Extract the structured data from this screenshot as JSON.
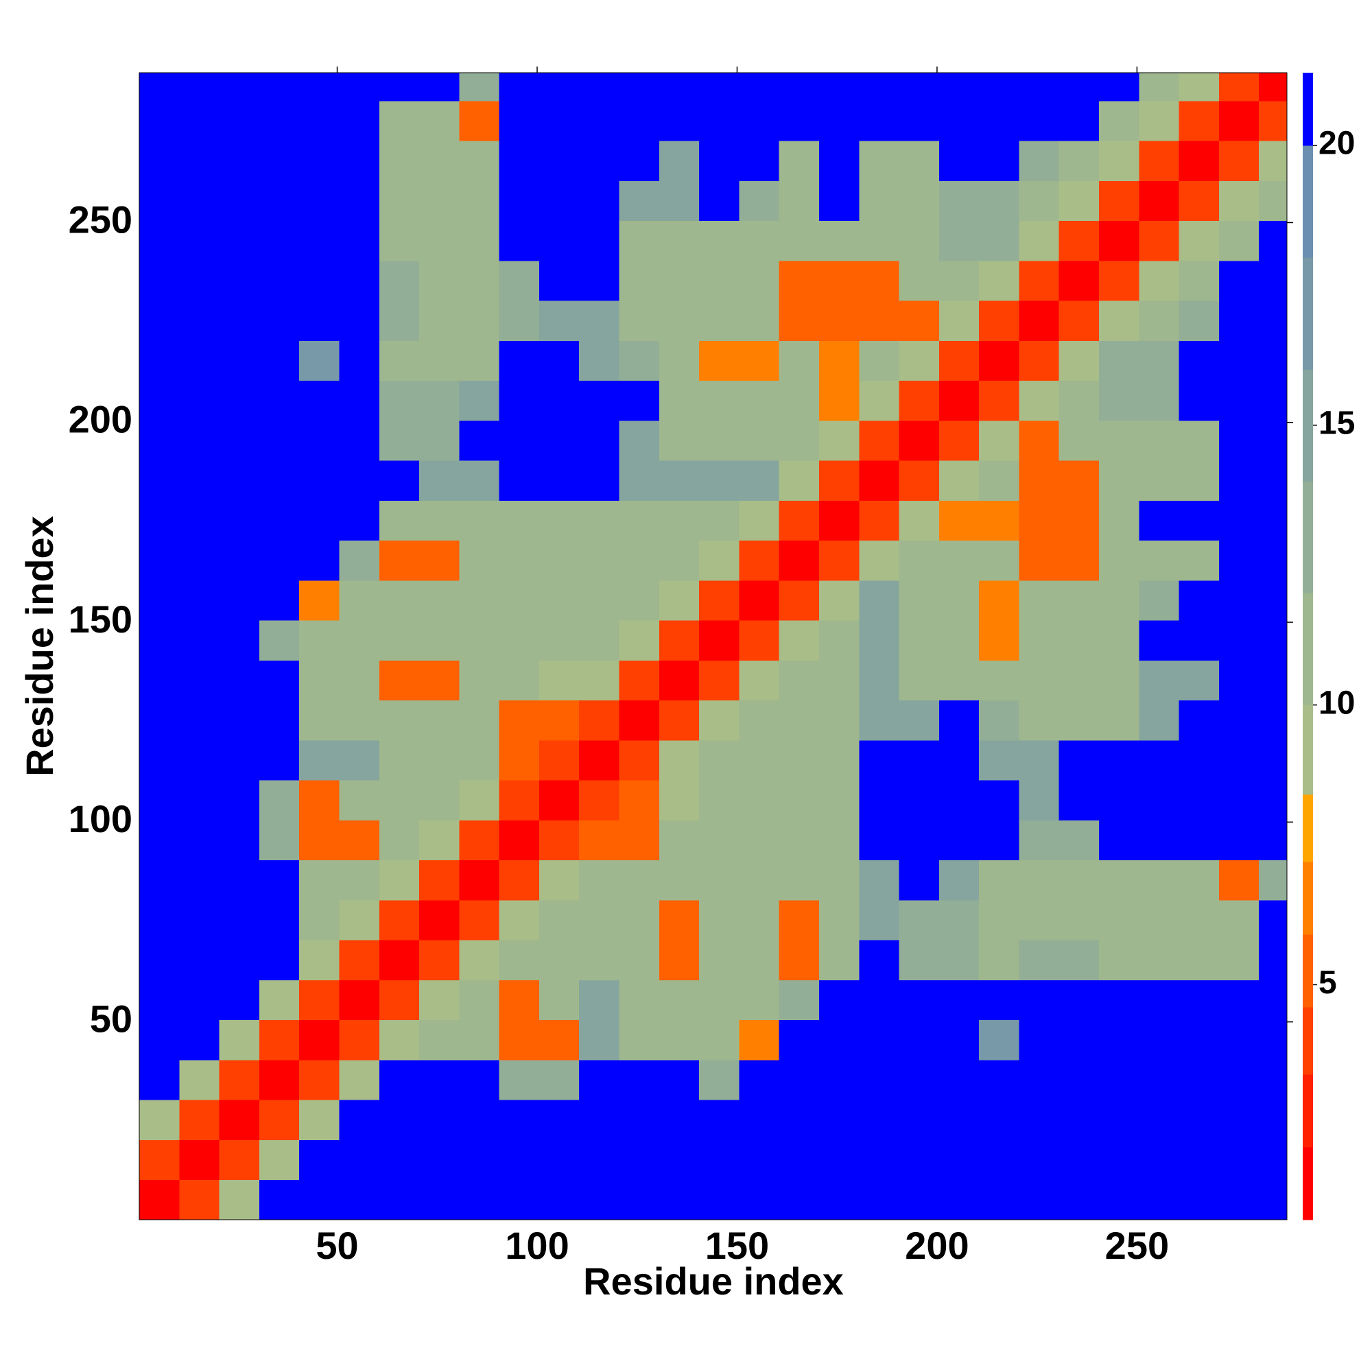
{
  "chart_data": {
    "type": "heatmap",
    "xlabel": "Residue index",
    "ylabel": "Residue index",
    "xlim": [
      0.5,
      287.5
    ],
    "ylim": [
      0.5,
      287.5
    ],
    "xticks": [
      50,
      100,
      150,
      200,
      250
    ],
    "yticks": [
      50,
      100,
      150,
      200,
      250
    ],
    "xbins": [
      0.5,
      10.5,
      20.5,
      30.5,
      40.5,
      50.5,
      60.5,
      70.5,
      80.5,
      90.5,
      100.5,
      110.5,
      120.5,
      130.5,
      140.5,
      150.5,
      160.5,
      170.5,
      180.5,
      190.5,
      200.5,
      210.5,
      220.5,
      230.5,
      240.5,
      250.5,
      260.5,
      270.5,
      280.5,
      287.5
    ],
    "ybins": [
      0.5,
      10.5,
      20.5,
      30.5,
      40.5,
      50.5,
      60.5,
      70.5,
      80.5,
      90.5,
      100.5,
      110.5,
      120.5,
      130.5,
      140.5,
      150.5,
      160.5,
      170.5,
      180.5,
      190.5,
      200.5,
      210.5,
      220.5,
      230.5,
      240.5,
      250.5,
      260.5,
      270.5,
      280.5,
      287.5
    ],
    "values": [
      [
        2,
        4,
        9,
        21,
        21,
        21,
        21,
        21,
        21,
        21,
        21,
        21,
        21,
        21,
        21,
        21,
        21,
        21,
        21,
        21,
        21,
        21,
        21,
        21,
        21,
        21,
        21,
        21,
        21
      ],
      [
        4,
        2,
        4,
        9,
        21,
        21,
        21,
        21,
        21,
        21,
        21,
        21,
        21,
        21,
        21,
        21,
        21,
        21,
        21,
        21,
        21,
        21,
        21,
        21,
        21,
        21,
        21,
        21,
        21
      ],
      [
        9,
        4,
        2,
        4,
        9,
        21,
        21,
        21,
        21,
        21,
        21,
        21,
        21,
        21,
        21,
        21,
        21,
        21,
        21,
        21,
        21,
        21,
        21,
        21,
        21,
        21,
        21,
        21,
        21
      ],
      [
        21,
        9,
        4,
        2,
        4,
        9,
        21,
        21,
        21,
        13,
        13,
        21,
        21,
        21,
        14,
        21,
        21,
        21,
        21,
        21,
        21,
        21,
        21,
        21,
        21,
        21,
        21,
        21,
        21
      ],
      [
        21,
        21,
        9,
        4,
        2,
        4,
        9,
        11,
        11,
        5,
        5,
        15,
        11,
        11,
        11,
        6,
        21,
        21,
        21,
        21,
        21,
        17,
        21,
        21,
        21,
        21,
        21,
        21,
        21
      ],
      [
        21,
        21,
        21,
        9,
        4,
        2,
        4,
        9,
        11,
        5,
        11,
        15,
        11,
        11,
        11,
        11,
        13,
        21,
        21,
        21,
        21,
        21,
        21,
        21,
        21,
        21,
        21,
        21,
        21
      ],
      [
        21,
        21,
        21,
        21,
        9,
        4,
        2,
        4,
        9,
        11,
        11,
        11,
        11,
        5,
        11,
        11,
        5,
        11,
        21,
        14,
        14,
        12,
        13,
        13,
        12,
        12,
        12,
        12,
        21
      ],
      [
        21,
        21,
        21,
        21,
        11,
        9,
        4,
        2,
        4,
        9,
        11,
        11,
        11,
        5,
        11,
        11,
        5,
        11,
        16,
        14,
        14,
        12,
        12,
        12,
        12,
        12,
        12,
        12,
        21
      ],
      [
        21,
        21,
        21,
        21,
        11,
        11,
        9,
        4,
        2,
        4,
        9,
        11,
        11,
        11,
        11,
        11,
        11,
        12,
        16,
        21,
        15,
        12,
        12,
        12,
        12,
        12,
        12,
        5,
        14
      ],
      [
        21,
        21,
        21,
        13,
        5,
        5,
        11,
        9,
        4,
        2,
        4,
        5,
        5,
        11,
        11,
        11,
        11,
        12,
        21,
        21,
        21,
        21,
        13,
        13,
        21,
        21,
        21,
        21,
        21
      ],
      [
        21,
        21,
        21,
        13,
        5,
        11,
        11,
        11,
        9,
        4,
        2,
        4,
        5,
        9,
        11,
        11,
        11,
        11,
        21,
        21,
        21,
        21,
        16,
        21,
        21,
        21,
        21,
        21,
        21
      ],
      [
        21,
        21,
        21,
        21,
        15,
        15,
        11,
        11,
        11,
        5,
        4,
        2,
        4,
        9,
        11,
        11,
        11,
        11,
        21,
        21,
        21,
        16,
        16,
        21,
        21,
        21,
        21,
        21,
        21
      ],
      [
        21,
        21,
        21,
        21,
        11,
        11,
        11,
        11,
        11,
        5,
        5,
        4,
        2,
        4,
        9,
        11,
        11,
        11,
        16,
        16,
        21,
        14,
        12,
        12,
        12,
        16,
        21,
        21,
        21
      ],
      [
        21,
        21,
        21,
        21,
        11,
        11,
        5,
        5,
        11,
        11,
        9,
        9,
        4,
        2,
        4,
        9,
        11,
        11,
        16,
        11,
        11,
        12,
        12,
        12,
        12,
        16,
        16,
        21,
        21
      ],
      [
        21,
        21,
        21,
        14,
        11,
        11,
        11,
        11,
        11,
        11,
        11,
        11,
        9,
        4,
        2,
        4,
        9,
        11,
        16,
        11,
        11,
        6,
        12,
        12,
        12,
        21,
        21,
        21,
        21
      ],
      [
        21,
        21,
        21,
        21,
        6,
        11,
        11,
        11,
        11,
        11,
        11,
        11,
        11,
        9,
        4,
        2,
        4,
        9,
        16,
        11,
        11,
        6,
        12,
        12,
        12,
        14,
        21,
        21,
        21
      ],
      [
        21,
        21,
        21,
        21,
        21,
        13,
        5,
        5,
        11,
        11,
        11,
        11,
        11,
        11,
        9,
        4,
        2,
        4,
        9,
        11,
        11,
        12,
        5,
        5,
        12,
        12,
        12,
        21,
        21
      ],
      [
        21,
        21,
        21,
        21,
        21,
        21,
        11,
        11,
        12,
        12,
        11,
        11,
        11,
        11,
        11,
        9,
        4,
        2,
        4,
        9,
        6,
        6,
        5,
        5,
        12,
        21,
        21,
        21,
        21
      ],
      [
        21,
        21,
        21,
        21,
        21,
        21,
        21,
        16,
        16,
        21,
        21,
        21,
        16,
        16,
        16,
        16,
        9,
        4,
        2,
        4,
        9,
        11,
        5,
        5,
        12,
        12,
        12,
        21,
        21
      ],
      [
        21,
        21,
        21,
        21,
        21,
        21,
        14,
        14,
        21,
        21,
        21,
        21,
        16,
        11,
        11,
        11,
        11,
        9,
        4,
        2,
        4,
        9,
        5,
        11,
        12,
        12,
        12,
        21,
        21
      ],
      [
        21,
        21,
        21,
        21,
        21,
        21,
        14,
        14,
        15,
        21,
        21,
        21,
        21,
        11,
        11,
        11,
        11,
        6,
        9,
        4,
        2,
        4,
        9,
        11,
        14,
        14,
        21,
        21,
        21
      ],
      [
        21,
        21,
        21,
        21,
        17,
        21,
        12,
        12,
        12,
        21,
        21,
        16,
        14,
        12,
        6,
        6,
        12,
        6,
        11,
        9,
        4,
        2,
        4,
        9,
        14,
        13,
        21,
        21,
        21
      ],
      [
        21,
        21,
        21,
        21,
        21,
        21,
        13,
        12,
        12,
        13,
        16,
        16,
        12,
        12,
        12,
        12,
        5,
        5,
        5,
        5,
        9,
        4,
        2,
        4,
        9,
        12,
        14,
        21,
        21
      ],
      [
        21,
        21,
        21,
        21,
        21,
        21,
        13,
        12,
        12,
        13,
        21,
        21,
        12,
        12,
        12,
        12,
        5,
        5,
        5,
        11,
        11,
        9,
        4,
        2,
        4,
        9,
        12,
        21,
        21
      ],
      [
        21,
        21,
        21,
        21,
        21,
        21,
        12,
        12,
        12,
        21,
        21,
        21,
        12,
        12,
        12,
        12,
        12,
        12,
        12,
        12,
        14,
        14,
        9,
        4,
        2,
        4,
        9,
        12,
        21
      ],
      [
        21,
        21,
        21,
        21,
        21,
        21,
        12,
        12,
        12,
        21,
        21,
        21,
        16,
        16,
        21,
        14,
        12,
        21,
        12,
        12,
        14,
        13,
        12,
        9,
        4,
        2,
        4,
        9,
        12
      ],
      [
        21,
        21,
        21,
        21,
        21,
        21,
        12,
        12,
        12,
        21,
        21,
        21,
        21,
        16,
        21,
        21,
        12,
        21,
        12,
        12,
        21,
        21,
        14,
        12,
        9,
        4,
        2,
        4,
        9
      ],
      [
        21,
        21,
        21,
        21,
        21,
        21,
        12,
        12,
        5,
        21,
        21,
        21,
        21,
        21,
        21,
        21,
        21,
        21,
        21,
        21,
        21,
        21,
        21,
        21,
        12,
        9,
        4,
        2,
        4
      ],
      [
        21,
        21,
        21,
        21,
        21,
        21,
        21,
        21,
        14,
        21,
        21,
        21,
        21,
        21,
        21,
        21,
        21,
        21,
        21,
        21,
        21,
        21,
        21,
        21,
        21,
        12,
        9,
        4,
        2
      ]
    ],
    "colorbar": {
      "levels": [
        0.8,
        2.1,
        3.4,
        4.6,
        5.9,
        7.2,
        8.4,
        10,
        12,
        14,
        16,
        18,
        20,
        21.3
      ],
      "colors": [
        "#ff0000",
        "#ff2000",
        "#ff4000",
        "#ff6000",
        "#ff8000",
        "#ffa500",
        "#a9bd88",
        "#9fb78e",
        "#93ae96",
        "#86a59f",
        "#7899a8",
        "#6a8fb0",
        "#0000ff"
      ],
      "ticks": [
        5,
        10,
        15,
        20
      ]
    }
  }
}
